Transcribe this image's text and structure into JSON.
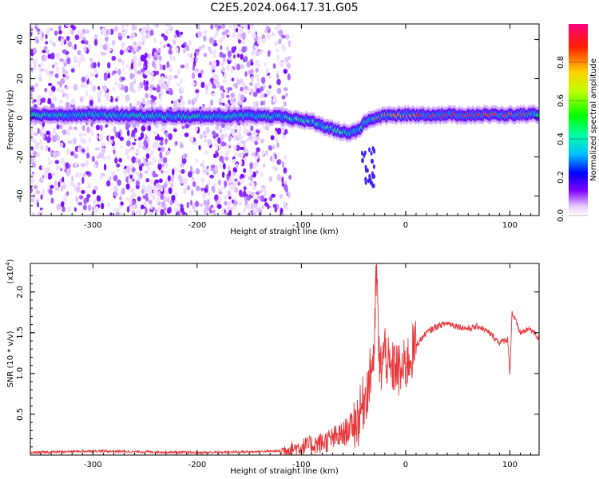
{
  "figure_title": "C2E5.2024.064.17.31.G05",
  "chart_data": [
    {
      "type": "heatmap",
      "title": "",
      "xlabel": "Height of straight line (km)",
      "ylabel": "Frequency (Hz)",
      "xlim": [
        -360,
        128
      ],
      "ylim": [
        -50,
        48
      ],
      "xticks": [
        -300,
        -200,
        -100,
        0,
        100
      ],
      "yticks": [
        -40,
        -20,
        0,
        20,
        40
      ],
      "colorbar": {
        "label": "Normalized spectral amplitude",
        "ticks": [
          0.0,
          0.2,
          0.4,
          0.6,
          0.8
        ],
        "range": [
          0,
          1
        ],
        "colormap": "rainbow"
      },
      "ridge": {
        "description_points_x": [
          -360,
          -300,
          -250,
          -200,
          -150,
          -120,
          -90,
          -70,
          -55,
          -45,
          -38,
          -30,
          -20,
          0,
          40,
          80,
          100,
          128
        ],
        "description_points_y": [
          1.5,
          1.5,
          1.0,
          0.5,
          1.0,
          0.5,
          -2,
          -6,
          -8,
          -6,
          -2,
          0,
          1,
          1.5,
          1.5,
          1.5,
          1.5,
          2
        ],
        "peak_amplitude": 0.9
      }
    },
    {
      "type": "line",
      "title": "",
      "xlabel": "Height of straight line (km)",
      "ylabel": "SNR (10 * v/v)",
      "yscale_label": "(x10",
      "yscale_exp": "4",
      "yscale_close": ")",
      "xlim": [
        -360,
        128
      ],
      "ylim": [
        0,
        2.35
      ],
      "xticks": [
        -300,
        -200,
        -100,
        0,
        100
      ],
      "yticks": [
        0.5,
        1.0,
        1.5,
        2.0
      ],
      "series": [
        {
          "color": "#e8373b",
          "x": [
            -360,
            -300,
            -250,
            -200,
            -150,
            -120,
            -100,
            -80,
            -60,
            -45,
            -35,
            -30,
            -28,
            -25,
            -20,
            -15,
            -10,
            -5,
            0,
            10,
            20,
            30,
            40,
            50,
            60,
            70,
            80,
            90,
            98,
            100,
            102,
            110,
            120,
            128
          ],
          "y": [
            0.03,
            0.05,
            0.04,
            0.03,
            0.04,
            0.05,
            0.1,
            0.15,
            0.25,
            0.45,
            0.9,
            1.3,
            2.3,
            1.0,
            1.3,
            1.0,
            1.1,
            1.0,
            1.1,
            1.35,
            1.5,
            1.58,
            1.62,
            1.58,
            1.55,
            1.58,
            1.5,
            1.38,
            1.42,
            1.0,
            1.75,
            1.5,
            1.55,
            1.42
          ]
        }
      ]
    }
  ]
}
